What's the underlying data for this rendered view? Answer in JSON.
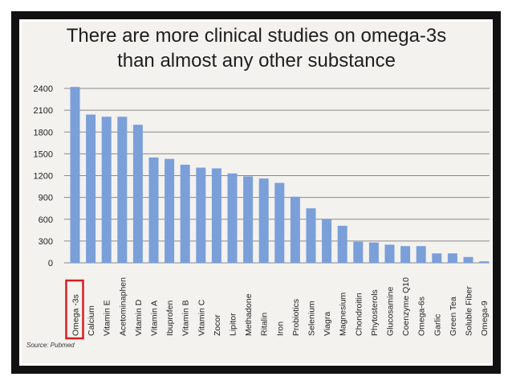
{
  "header": {
    "title_line1": "There are more clinical studies on omega-3s",
    "title_line2": "than almost any other substance"
  },
  "footer": {
    "source": "Source: Pubmed"
  },
  "colors": {
    "bar": "#7b9fd9",
    "grid": "#8a8a8a",
    "highlight_box": "#d42020",
    "frame": "#111111"
  },
  "chart_data": {
    "type": "bar",
    "title": "There are more clinical studies on omega-3s than almost any other substance",
    "xlabel": "",
    "ylabel": "",
    "categories": [
      "Omega -3s",
      "Calcium",
      "Vitamin E",
      "Acetominaphen",
      "Vitamin D",
      "Vitamin A",
      "Ibuprofen",
      "Vitamin B",
      "Vitamin C",
      "Zocor",
      "Lipitor",
      "Methadone",
      "Ritalin",
      "Iron",
      "Probiotics",
      "Selenium",
      "Viagra",
      "Magnesium",
      "Chondroitin",
      "Phytosterols",
      "Glucosamine",
      "Coenzyme Q10",
      "Omega-6s",
      "Garlic",
      "Green Tea",
      "Soluble Fiber",
      "Omega-9"
    ],
    "values": [
      2420,
      2040,
      2010,
      2010,
      1900,
      1450,
      1430,
      1350,
      1310,
      1300,
      1230,
      1190,
      1160,
      1100,
      910,
      750,
      600,
      510,
      290,
      280,
      250,
      230,
      230,
      130,
      130,
      80,
      20
    ],
    "yticks": [
      0,
      300,
      600,
      900,
      1200,
      1500,
      1800,
      2100,
      2400
    ],
    "ylim": [
      0,
      2400
    ],
    "grid": true,
    "legend": "none",
    "highlighted_category": "Omega -3s"
  }
}
